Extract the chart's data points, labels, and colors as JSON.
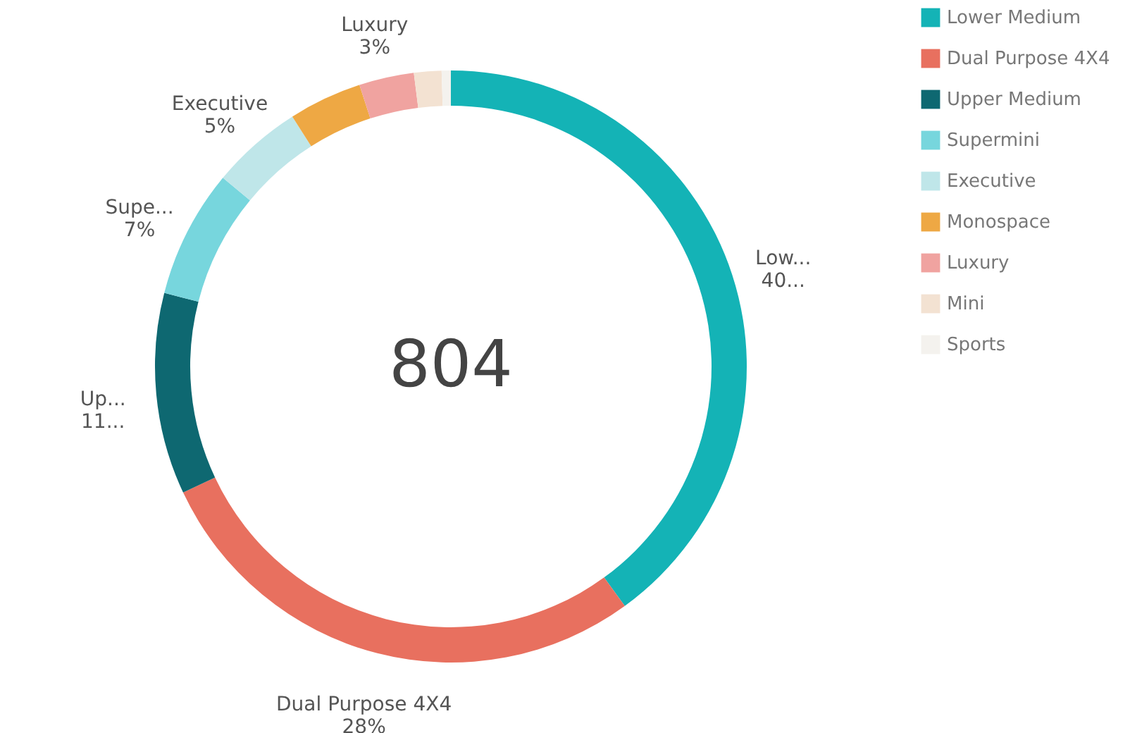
{
  "chart_data": {
    "type": "donut",
    "categories": [
      "Lower Medium",
      "Dual Purpose 4X4",
      "Upper Medium",
      "Supermini",
      "Executive",
      "Monospace",
      "Luxury",
      "Mini",
      "Sports"
    ],
    "values": [
      40,
      28,
      11,
      7,
      5,
      4,
      3,
      1.5,
      0.5
    ],
    "colors": [
      "#14b3b6",
      "#e8705f",
      "#0e6871",
      "#77d6dd",
      "#bfe6e9",
      "#eea844",
      "#f0a3a0",
      "#f3e2d2",
      "#f4f2ee"
    ],
    "value_labels": [
      "Low...\n40...",
      "Dual Purpose 4X4\n28%",
      "Up...\n11...",
      "Supe...\n7%",
      "Executive\n5%",
      null,
      "Luxury\n3%",
      null,
      null
    ],
    "annotations": [
      "804"
    ],
    "legend": "top right"
  }
}
